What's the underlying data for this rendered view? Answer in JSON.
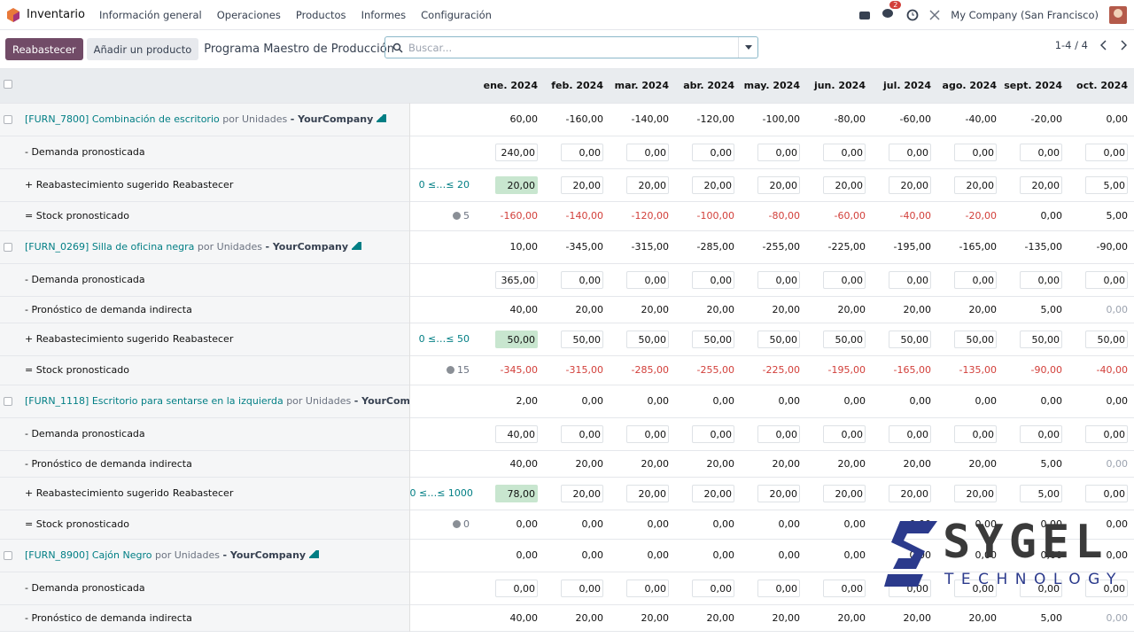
{
  "navbar": {
    "app": "Inventario",
    "menus": [
      "Información general",
      "Operaciones",
      "Productos",
      "Informes",
      "Configuración"
    ],
    "badge": "2",
    "company": "My Company (San Francisco)"
  },
  "control": {
    "buttons": [
      "Reabastecer",
      "Añadir un producto"
    ],
    "title": "Programa Maestro de Producción",
    "search": "Buscar...",
    "pager": "1-4 / 4"
  },
  "table": {
    "months": [
      "ene. 2024",
      "feb. 2024",
      "mar. 2024",
      "abr. 2024",
      "may. 2024",
      "jun. 2024",
      "jul. 2024",
      "ago. 2024",
      "sept. 2024",
      "oct. 2024"
    ],
    "products": [
      {
        "name": "[FURN_7800] Combinación de escritorio",
        "uom": "por Unidades",
        "company": "- YourCompany",
        "values": [
          "60,00",
          "-160,00",
          "-140,00",
          "-120,00",
          "-100,00",
          "-80,00",
          "-60,00",
          "-40,00",
          "-20,00",
          "0,00"
        ],
        "demand": {
          "label": "- Demanda pronosticada",
          "values": [
            "240,00",
            "0,00",
            "0,00",
            "0,00",
            "0,00",
            "0,00",
            "0,00",
            "0,00",
            "0,00",
            "0,00"
          ]
        },
        "replenish": {
          "label": "+ Reabastecimiento sugerido",
          "action": "Reabastecer",
          "range": "0 ≤…≤ 20",
          "values": [
            "20,00",
            "20,00",
            "20,00",
            "20,00",
            "20,00",
            "20,00",
            "20,00",
            "20,00",
            "20,00",
            "5,00"
          ]
        },
        "stock": {
          "label": "= Stock pronosticado",
          "safety": "5",
          "values": [
            "-160,00",
            "-140,00",
            "-120,00",
            "-100,00",
            "-80,00",
            "-60,00",
            "-40,00",
            "-20,00",
            "0,00",
            "5,00"
          ]
        }
      },
      {
        "name": "[FURN_0269] Silla de oficina negra",
        "uom": "por Unidades",
        "company": "- YourCompany",
        "values": [
          "10,00",
          "-345,00",
          "-315,00",
          "-285,00",
          "-255,00",
          "-225,00",
          "-195,00",
          "-165,00",
          "-135,00",
          "-90,00"
        ],
        "demand": {
          "label": "- Demanda pronosticada",
          "values": [
            "365,00",
            "0,00",
            "0,00",
            "0,00",
            "0,00",
            "0,00",
            "0,00",
            "0,00",
            "0,00",
            "0,00"
          ]
        },
        "indirect": {
          "label": "- Pronóstico de demanda indirecta",
          "values": [
            "40,00",
            "20,00",
            "20,00",
            "20,00",
            "20,00",
            "20,00",
            "20,00",
            "20,00",
            "5,00",
            "0,00"
          ]
        },
        "replenish": {
          "label": "+ Reabastecimiento sugerido",
          "action": "Reabastecer",
          "range": "0 ≤…≤ 50",
          "values": [
            "50,00",
            "50,00",
            "50,00",
            "50,00",
            "50,00",
            "50,00",
            "50,00",
            "50,00",
            "50,00",
            "50,00"
          ]
        },
        "stock": {
          "label": "= Stock pronosticado",
          "safety": "15",
          "values": [
            "-345,00",
            "-315,00",
            "-285,00",
            "-255,00",
            "-225,00",
            "-195,00",
            "-165,00",
            "-135,00",
            "-90,00",
            "-40,00"
          ]
        }
      },
      {
        "name": "[FURN_1118] Escritorio para sentarse en la izquierda",
        "uom": "por Unidades",
        "company": "- YourCompany",
        "values": [
          "2,00",
          "0,00",
          "0,00",
          "0,00",
          "0,00",
          "0,00",
          "0,00",
          "0,00",
          "0,00",
          "0,00"
        ],
        "demand": {
          "label": "- Demanda pronosticada",
          "values": [
            "40,00",
            "0,00",
            "0,00",
            "0,00",
            "0,00",
            "0,00",
            "0,00",
            "0,00",
            "0,00",
            "0,00"
          ]
        },
        "indirect": {
          "label": "- Pronóstico de demanda indirecta",
          "values": [
            "40,00",
            "20,00",
            "20,00",
            "20,00",
            "20,00",
            "20,00",
            "20,00",
            "20,00",
            "5,00",
            "0,00"
          ]
        },
        "replenish": {
          "label": "+ Reabastecimiento sugerido",
          "action": "Reabastecer",
          "range": "0 ≤…≤ 1000",
          "values": [
            "78,00",
            "20,00",
            "20,00",
            "20,00",
            "20,00",
            "20,00",
            "20,00",
            "20,00",
            "5,00",
            "0,00"
          ]
        },
        "stock": {
          "label": "= Stock pronosticado",
          "safety": "0",
          "values": [
            "0,00",
            "0,00",
            "0,00",
            "0,00",
            "0,00",
            "0,00",
            "0,00",
            "0,00",
            "0,00",
            "0,00"
          ]
        }
      },
      {
        "name": "[FURN_8900] Cajón Negro",
        "uom": "por Unidades",
        "company": "- YourCompany",
        "values": [
          "0,00",
          "0,00",
          "0,00",
          "0,00",
          "0,00",
          "0,00",
          "0,00",
          "0,00",
          "0,00",
          "0,00"
        ],
        "demand": {
          "label": "- Demanda pronosticada",
          "values": [
            "0,00",
            "0,00",
            "0,00",
            "0,00",
            "0,00",
            "0,00",
            "0,00",
            "0,00",
            "0,00",
            "0,00"
          ]
        },
        "indirect": {
          "label": "- Pronóstico de demanda indirecta",
          "values": [
            "40,00",
            "20,00",
            "20,00",
            "20,00",
            "20,00",
            "20,00",
            "20,00",
            "20,00",
            "5,00",
            "0,00"
          ]
        }
      }
    ]
  },
  "watermark": {
    "brand": "SYGEL",
    "tagline": "TECHNOLOGY"
  }
}
